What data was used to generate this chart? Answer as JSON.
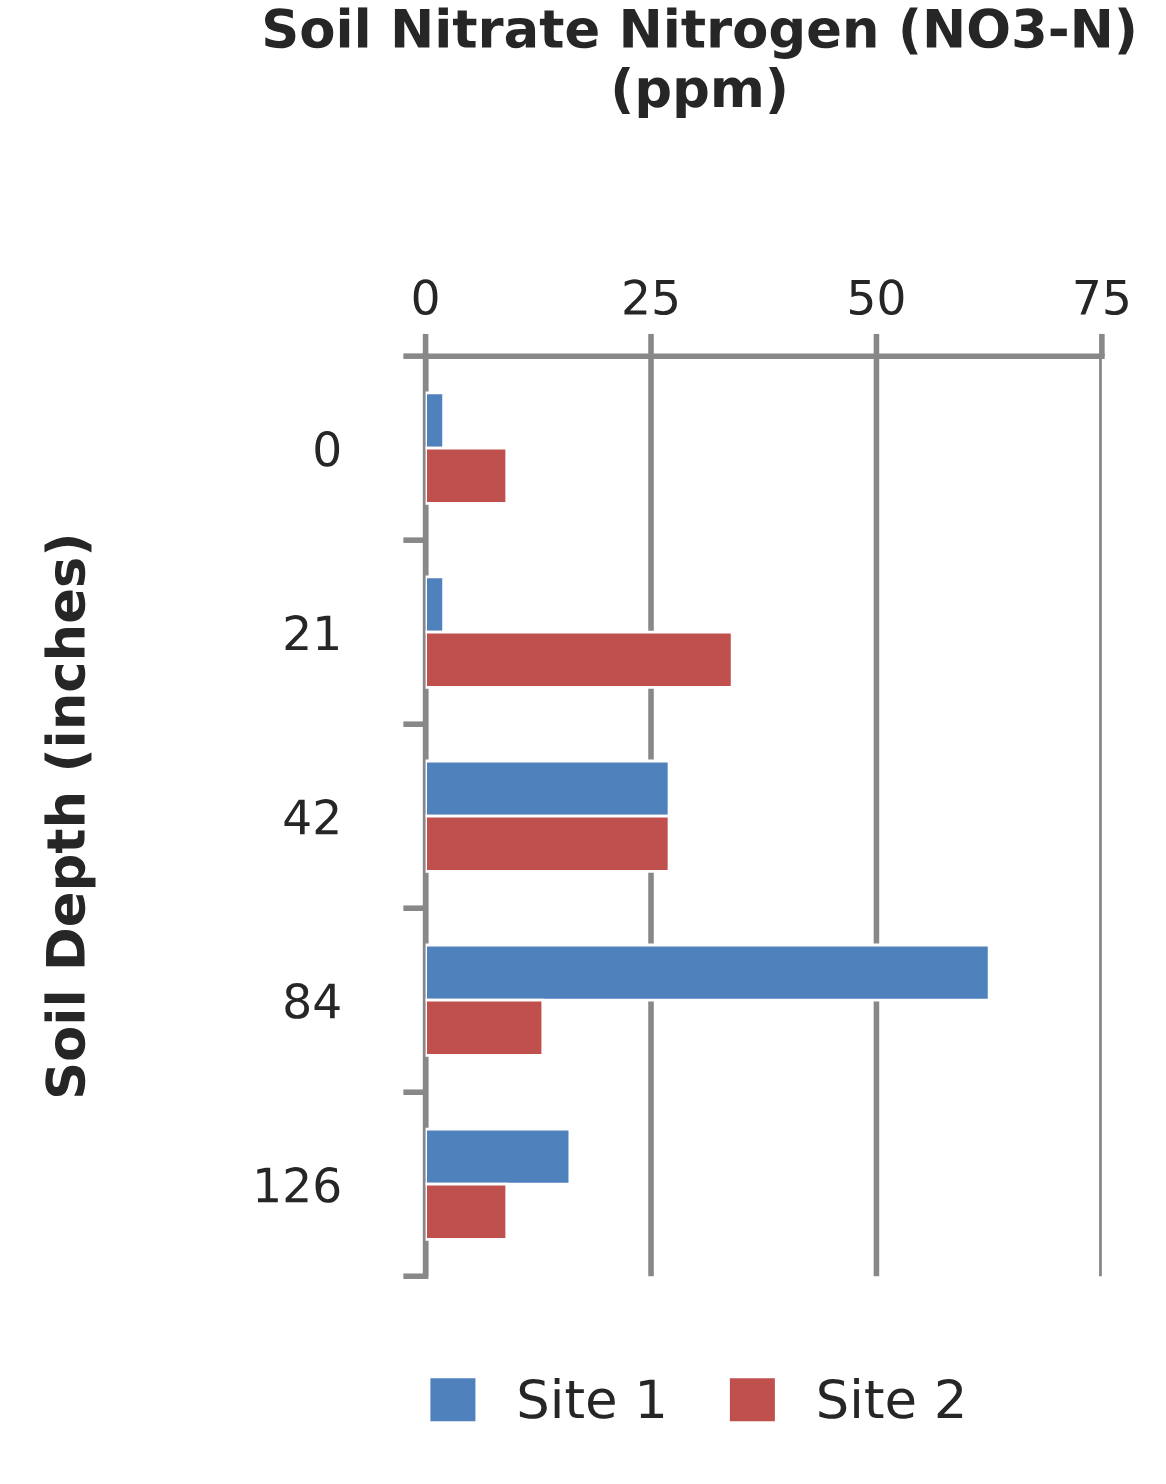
{
  "chart_data": {
    "type": "bar",
    "orientation": "horizontal",
    "title": "Soil Nitrate Nitrogen (NO3-N)\n(ppm)",
    "ylabel": "Soil Depth (inches)",
    "categories": [
      "0",
      "21",
      "42",
      "84",
      "126"
    ],
    "series": [
      {
        "name": "Site 1",
        "color": "#4f81bd",
        "values": [
          2,
          2,
          27,
          62.5,
          16
        ]
      },
      {
        "name": "Site 2",
        "color": "#c0504d",
        "values": [
          9,
          34,
          27,
          13,
          9
        ]
      }
    ],
    "xlim": [
      0,
      75
    ],
    "xticks": [
      0,
      25,
      50,
      75
    ],
    "grid": "x",
    "legend": "bottom"
  }
}
